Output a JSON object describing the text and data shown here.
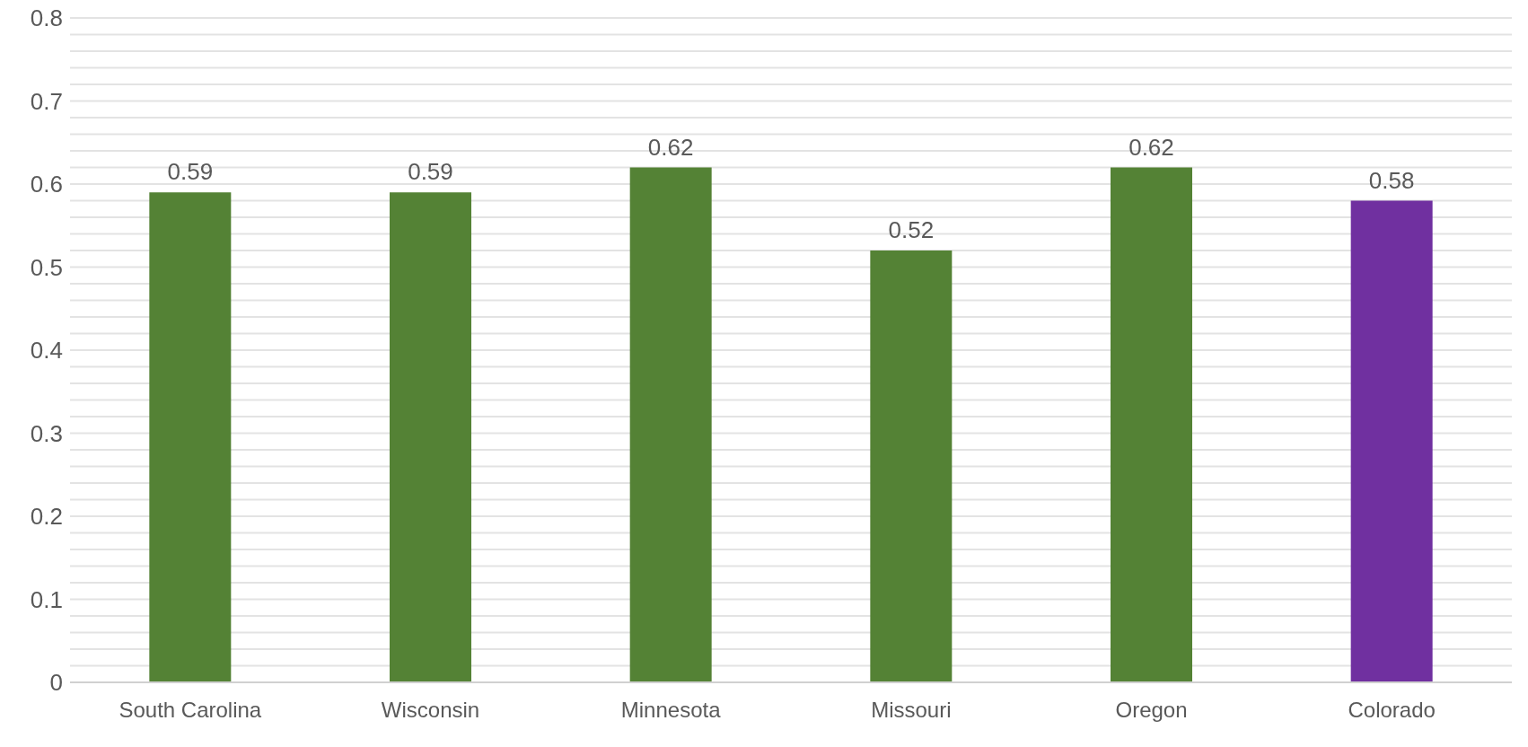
{
  "chart_data": {
    "type": "bar",
    "categories": [
      "South Carolina",
      "Wisconsin",
      "Minnesota",
      "Missouri",
      "Oregon",
      "Colorado"
    ],
    "values": [
      0.59,
      0.59,
      0.62,
      0.52,
      0.62,
      0.58
    ],
    "colors": [
      "#548235",
      "#548235",
      "#548235",
      "#548235",
      "#548235",
      "#7030a0"
    ],
    "ylim": [
      0,
      0.8
    ],
    "yticks": [
      0,
      {
        "value": 0.02,
        "label": null
      },
      {
        "value": 0.04,
        "label": null
      },
      {
        "value": 0.06,
        "label": null
      },
      {
        "value": 0.08,
        "label": null
      },
      0.1,
      {
        "value": 0.12,
        "label": null
      },
      {
        "value": 0.14,
        "label": null
      },
      {
        "value": 0.16,
        "label": null
      },
      {
        "value": 0.18,
        "label": null
      },
      0.2,
      {
        "value": 0.22,
        "label": null
      },
      {
        "value": 0.24,
        "label": null
      },
      {
        "value": 0.26,
        "label": null
      },
      {
        "value": 0.28,
        "label": null
      },
      0.3,
      {
        "value": 0.32,
        "label": null
      },
      {
        "value": 0.34,
        "label": null
      },
      {
        "value": 0.36,
        "label": null
      },
      {
        "value": 0.38,
        "label": null
      },
      0.4,
      {
        "value": 0.42,
        "label": null
      },
      {
        "value": 0.44,
        "label": null
      },
      {
        "value": 0.46,
        "label": null
      },
      {
        "value": 0.48,
        "label": null
      },
      0.5,
      {
        "value": 0.52,
        "label": null
      },
      {
        "value": 0.54,
        "label": null
      },
      {
        "value": 0.56,
        "label": null
      },
      {
        "value": 0.58,
        "label": null
      },
      0.6,
      {
        "value": 0.62,
        "label": null
      },
      {
        "value": 0.64,
        "label": null
      },
      {
        "value": 0.66,
        "label": null
      },
      {
        "value": 0.68,
        "label": null
      },
      0.7,
      {
        "value": 0.72,
        "label": null
      },
      {
        "value": 0.74,
        "label": null
      },
      {
        "value": 0.76,
        "label": null
      },
      {
        "value": 0.78,
        "label": null
      },
      0.8
    ],
    "grid": true,
    "data_labels": true
  }
}
